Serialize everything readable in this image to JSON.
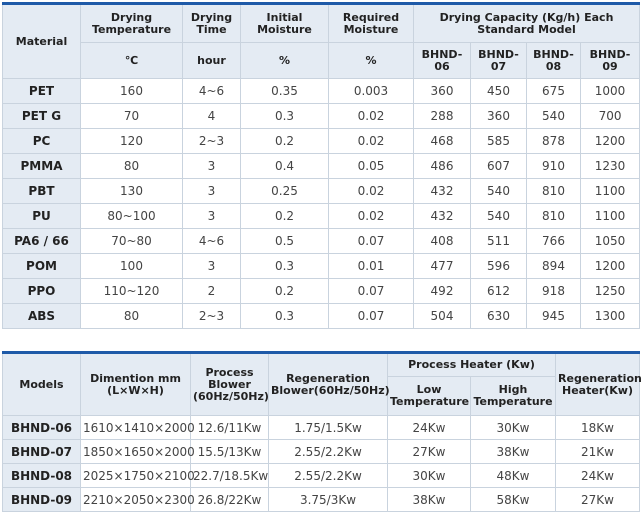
{
  "drying_table": {
    "headers": {
      "material": "Material",
      "drying_temperature": "Drying Temperature",
      "drying_time": "Drying Time",
      "initial_moisture": "Initial Moisture",
      "required_moisture": "Required Moisture",
      "capacity": "Drying Capacity (Kg/h) Each Standard Model"
    },
    "units": {
      "temp": "℃",
      "time": "hour",
      "initial": "%",
      "required": "%"
    },
    "models": [
      "BHND-06",
      "BHND-07",
      "BHND-08",
      "BHND-09"
    ],
    "rows": [
      {
        "material": "PET",
        "temp": "160",
        "time": "4~6",
        "initial": "0.35",
        "required": "0.003",
        "c1": "360",
        "c2": "450",
        "c3": "675",
        "c4": "1000"
      },
      {
        "material": "PET G",
        "temp": "70",
        "time": "4",
        "initial": "0.3",
        "required": "0.02",
        "c1": "288",
        "c2": "360",
        "c3": "540",
        "c4": "700"
      },
      {
        "material": "PC",
        "temp": "120",
        "time": "2~3",
        "initial": "0.2",
        "required": "0.02",
        "c1": "468",
        "c2": "585",
        "c3": "878",
        "c4": "1200"
      },
      {
        "material": "PMMA",
        "temp": "80",
        "time": "3",
        "initial": "0.4",
        "required": "0.05",
        "c1": "486",
        "c2": "607",
        "c3": "910",
        "c4": "1230"
      },
      {
        "material": "PBT",
        "temp": "130",
        "time": "3",
        "initial": "0.25",
        "required": "0.02",
        "c1": "432",
        "c2": "540",
        "c3": "810",
        "c4": "1100"
      },
      {
        "material": "PU",
        "temp": "80~100",
        "time": "3",
        "initial": "0.2",
        "required": "0.02",
        "c1": "432",
        "c2": "540",
        "c3": "810",
        "c4": "1100"
      },
      {
        "material": "PA6 / 66",
        "temp": "70~80",
        "time": "4~6",
        "initial": "0.5",
        "required": "0.07",
        "c1": "408",
        "c2": "511",
        "c3": "766",
        "c4": "1050"
      },
      {
        "material": "POM",
        "temp": "100",
        "time": "3",
        "initial": "0.3",
        "required": "0.01",
        "c1": "477",
        "c2": "596",
        "c3": "894",
        "c4": "1200"
      },
      {
        "material": "PPO",
        "temp": "110~120",
        "time": "2",
        "initial": "0.2",
        "required": "0.07",
        "c1": "492",
        "c2": "612",
        "c3": "918",
        "c4": "1250"
      },
      {
        "material": "ABS",
        "temp": "80",
        "time": "2~3",
        "initial": "0.3",
        "required": "0.07",
        "c1": "504",
        "c2": "630",
        "c3": "945",
        "c4": "1300"
      }
    ]
  },
  "spec_table": {
    "headers": {
      "models": "Models",
      "dimension": "Dimention mm (L×W×H)",
      "process_blower": "Process Blower (60Hz/50Hz)",
      "regeneration_blower": "Regeneration Blower(60Hz/50Hz)",
      "process_heater": "Process Heater (Kw)",
      "low_temp": "Low Temperature",
      "high_temp": "High Temperature",
      "regeneration_heater": "Regeneration Heater(Kw)"
    },
    "rows": [
      {
        "model": "BHND-06",
        "dimension": "1610×1410×2000",
        "process_blower": "12.6/11Kw",
        "regen_blower": "1.75/1.5Kw",
        "low": "24Kw",
        "high": "30Kw",
        "regen_heater": "18Kw"
      },
      {
        "model": "BHND-07",
        "dimension": "1850×1650×2000",
        "process_blower": "15.5/13Kw",
        "regen_blower": "2.55/2.2Kw",
        "low": "27Kw",
        "high": "38Kw",
        "regen_heater": "21Kw"
      },
      {
        "model": "BHND-08",
        "dimension": "2025×1750×2100",
        "process_blower": "22.7/18.5Kw",
        "regen_blower": "2.55/2.2Kw",
        "low": "30Kw",
        "high": "48Kw",
        "regen_heater": "24Kw"
      },
      {
        "model": "BHND-09",
        "dimension": "2210×2050×2300",
        "process_blower": "26.8/22Kw",
        "regen_blower": "3.75/3Kw",
        "low": "38Kw",
        "high": "58Kw",
        "regen_heater": "27Kw"
      }
    ]
  }
}
